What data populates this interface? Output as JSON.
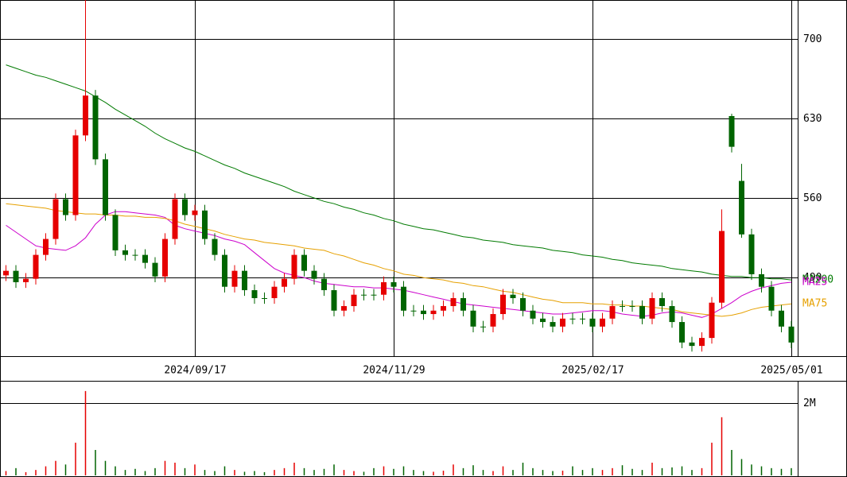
{
  "chart_data": [
    {
      "type": "candlestick",
      "categories": [
        null,
        null,
        null,
        null,
        null,
        null,
        null,
        null,
        null,
        null,
        null,
        null,
        null,
        null,
        null,
        null,
        null,
        null,
        null,
        "2024/09/17",
        null,
        null,
        null,
        null,
        null,
        null,
        null,
        null,
        null,
        null,
        null,
        null,
        null,
        null,
        null,
        null,
        null,
        null,
        null,
        "2024/11/29",
        null,
        null,
        null,
        null,
        null,
        null,
        null,
        null,
        null,
        null,
        null,
        null,
        null,
        null,
        null,
        null,
        null,
        null,
        null,
        "2025/02/17",
        null,
        null,
        null,
        null,
        null,
        null,
        null,
        null,
        null,
        null,
        null,
        null,
        null,
        null,
        null,
        null,
        null,
        null,
        null,
        "2025/05/01"
      ],
      "open": [
        492,
        496,
        486,
        489,
        510,
        524,
        559,
        545,
        615,
        650,
        594,
        545,
        514,
        510,
        510,
        503,
        491,
        524,
        559,
        545,
        549,
        524,
        510,
        482,
        496,
        479,
        472,
        472,
        482,
        489,
        510,
        496,
        489,
        479,
        461,
        465,
        475,
        475,
        475,
        486,
        482,
        461,
        461,
        458,
        461,
        465,
        472,
        461,
        447,
        447,
        458,
        475,
        472,
        461,
        454,
        451,
        447,
        454,
        454,
        454,
        447,
        454,
        465,
        465,
        465,
        454,
        472,
        465,
        451,
        433,
        430,
        437,
        468,
        632,
        575,
        528,
        493,
        482,
        461,
        447
      ],
      "high": [
        501,
        501,
        494,
        515,
        529,
        564,
        564,
        620,
        734,
        655,
        599,
        550,
        519,
        515,
        515,
        508,
        529,
        564,
        564,
        554,
        554,
        529,
        515,
        501,
        501,
        484,
        477,
        487,
        494,
        515,
        515,
        501,
        494,
        484,
        470,
        480,
        480,
        480,
        491,
        491,
        487,
        466,
        466,
        466,
        470,
        477,
        477,
        466,
        452,
        463,
        480,
        480,
        477,
        466,
        459,
        456,
        459,
        459,
        459,
        459,
        459,
        470,
        470,
        470,
        470,
        477,
        477,
        470,
        456,
        438,
        442,
        473,
        550,
        634,
        590,
        533,
        498,
        487,
        466,
        452
      ],
      "low": [
        487,
        481,
        481,
        484,
        505,
        519,
        540,
        540,
        610,
        589,
        540,
        509,
        505,
        505,
        498,
        486,
        486,
        519,
        540,
        540,
        519,
        505,
        477,
        477,
        474,
        467,
        467,
        467,
        477,
        484,
        491,
        484,
        474,
        456,
        456,
        460,
        470,
        470,
        470,
        477,
        456,
        456,
        453,
        453,
        456,
        460,
        456,
        442,
        442,
        442,
        453,
        467,
        456,
        449,
        446,
        442,
        442,
        449,
        449,
        442,
        442,
        449,
        460,
        460,
        449,
        449,
        460,
        446,
        428,
        425,
        425,
        432,
        463,
        600,
        525,
        488,
        477,
        456,
        442,
        428
      ],
      "close": [
        496,
        486,
        489,
        510,
        524,
        559,
        545,
        615,
        650,
        594,
        545,
        514,
        510,
        510,
        503,
        491,
        524,
        559,
        545,
        549,
        524,
        510,
        482,
        496,
        479,
        472,
        472,
        482,
        489,
        510,
        496,
        489,
        479,
        461,
        465,
        475,
        475,
        475,
        486,
        482,
        461,
        461,
        458,
        461,
        465,
        472,
        461,
        447,
        447,
        458,
        475,
        472,
        461,
        454,
        451,
        447,
        454,
        454,
        454,
        447,
        454,
        465,
        465,
        465,
        454,
        472,
        465,
        451,
        433,
        430,
        437,
        468,
        531,
        605,
        528,
        493,
        482,
        461,
        447,
        433
      ],
      "up_color": "#e60000",
      "down_color": "#006400",
      "ylim": [
        421,
        734
      ],
      "yticks": [
        490,
        560,
        630,
        700
      ],
      "grid": true,
      "series": [
        {
          "name": "MA200",
          "color": "#007a00",
          "values": [
            677,
            674,
            671,
            668,
            666,
            663,
            660,
            657,
            654,
            649,
            644,
            638,
            633,
            628,
            623,
            617,
            612,
            608,
            604,
            601,
            597,
            593,
            589,
            586,
            582,
            579,
            576,
            573,
            570,
            566,
            563,
            560,
            557,
            555,
            552,
            550,
            547,
            545,
            542,
            540,
            537,
            535,
            533,
            532,
            530,
            528,
            526,
            525,
            523,
            522,
            521,
            519,
            518,
            517,
            516,
            514,
            513,
            512,
            510,
            509,
            508,
            506,
            505,
            503,
            502,
            501,
            500,
            498,
            497,
            496,
            495,
            493,
            492,
            491,
            491,
            490,
            490,
            489,
            489,
            488
          ]
        },
        {
          "name": "MA25",
          "color": "#cc00cc",
          "values": [
            536,
            530,
            524,
            518,
            516,
            515,
            514,
            518,
            525,
            537,
            545,
            548,
            548,
            547,
            546,
            545,
            543,
            536,
            533,
            531,
            529,
            527,
            524,
            522,
            519,
            512,
            505,
            498,
            494,
            492,
            490,
            487,
            485,
            484,
            483,
            482,
            482,
            481,
            481,
            480,
            479,
            477,
            475,
            473,
            471,
            469,
            467,
            466,
            465,
            464,
            463,
            462,
            461,
            460,
            459,
            458,
            458,
            459,
            460,
            461,
            461,
            460,
            458,
            457,
            456,
            457,
            459,
            460,
            459,
            457,
            455,
            458,
            463,
            468,
            474,
            478,
            481,
            483,
            485,
            486
          ]
        },
        {
          "name": "MA75",
          "color": "#e6a000",
          "values": [
            555,
            554,
            553,
            552,
            551,
            549,
            548,
            547,
            546,
            546,
            545,
            545,
            544,
            544,
            543,
            543,
            542,
            540,
            537,
            535,
            533,
            531,
            528,
            526,
            524,
            523,
            521,
            520,
            519,
            518,
            516,
            515,
            514,
            511,
            509,
            506,
            503,
            501,
            498,
            496,
            493,
            492,
            490,
            489,
            488,
            486,
            485,
            483,
            482,
            480,
            478,
            477,
            475,
            473,
            471,
            470,
            468,
            468,
            468,
            467,
            467,
            466,
            466,
            465,
            465,
            464,
            463,
            462,
            460,
            459,
            458,
            457,
            456,
            457,
            459,
            462,
            464,
            465,
            466,
            467
          ]
        }
      ]
    },
    {
      "type": "bar",
      "values": [
        120000,
        200000,
        90000,
        150000,
        250000,
        400000,
        300000,
        900000,
        2320000,
        700000,
        400000,
        250000,
        150000,
        180000,
        120000,
        200000,
        400000,
        350000,
        200000,
        300000,
        150000,
        120000,
        250000,
        150000,
        100000,
        120000,
        90000,
        150000,
        200000,
        350000,
        200000,
        150000,
        180000,
        300000,
        150000,
        120000,
        100000,
        200000,
        250000,
        180000,
        250000,
        150000,
        120000,
        100000,
        130000,
        300000,
        200000,
        280000,
        150000,
        120000,
        250000,
        150000,
        350000,
        200000,
        150000,
        120000,
        130000,
        250000,
        150000,
        200000,
        150000,
        200000,
        280000,
        180000,
        150000,
        350000,
        200000,
        220000,
        250000,
        150000,
        200000,
        900000,
        1600000,
        700000,
        450000,
        300000,
        250000,
        200000,
        180000,
        200000
      ],
      "ylim": [
        0,
        2580000
      ],
      "yticks": [
        {
          "value": 2000000,
          "label": "2M"
        }
      ],
      "grid": true
    }
  ]
}
